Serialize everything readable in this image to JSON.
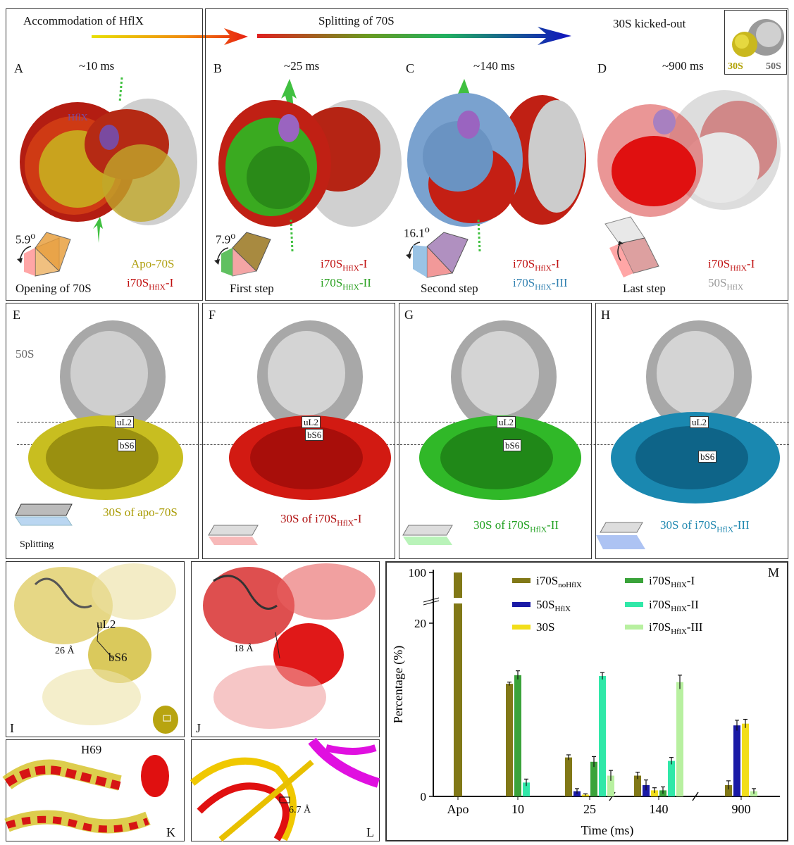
{
  "arrows": {
    "accommodation": "Accommodation of HflX",
    "splitting": "Splitting of 70S",
    "kicked_out": "30S kicked-out",
    "inset_30s": "30S",
    "inset_50s": "50S"
  },
  "panels_top": {
    "A": {
      "label": "A",
      "time": "~10 ms",
      "angle": "5.9",
      "deg": "o",
      "hflx": "HflX",
      "caption": "Opening of 70S",
      "legend1": "Apo-70S",
      "legend2_main": "i70S",
      "legend2_sub": "HflX",
      "legend2_suffix": "-I"
    },
    "B": {
      "label": "B",
      "time": "~25 ms",
      "angle": "7.9",
      "deg": "o",
      "caption": "First step",
      "legend1_main": "i70S",
      "legend1_sub": "HflX",
      "legend1_suffix": "-I",
      "legend2_main": "i70S",
      "legend2_sub": "HflX",
      "legend2_suffix": "-II"
    },
    "C": {
      "label": "C",
      "time": "~140 ms",
      "angle": "16.1",
      "deg": "o",
      "caption": "Second step",
      "legend1_main": "i70S",
      "legend1_sub": "HflX",
      "legend1_suffix": "-I",
      "legend2_main": "i70S",
      "legend2_sub": "HflX",
      "legend2_suffix": "-III"
    },
    "D": {
      "label": "D",
      "time": "~900 ms",
      "caption": "Last step",
      "legend1_main": "i70S",
      "legend1_sub": "HflX",
      "legend1_suffix": "-I",
      "legend2_main": "50S",
      "legend2_sub": "HflX"
    }
  },
  "panels_mid": {
    "E": {
      "label": "E",
      "tag50": "50S",
      "uL2": "uL2",
      "bS6": "bS6",
      "caption": "30S of apo-70S",
      "splitting": "Splitting"
    },
    "F": {
      "label": "F",
      "uL2": "uL2",
      "bS6": "bS6",
      "caption_main": "30S of i70S",
      "caption_sub": "HflX",
      "caption_suffix": "-I"
    },
    "G": {
      "label": "G",
      "uL2": "uL2",
      "bS6": "bS6",
      "caption_main": "30S of i70S",
      "caption_sub": "HflX",
      "caption_suffix": "-II"
    },
    "H": {
      "label": "H",
      "uL2": "uL2",
      "bS6": "bS6",
      "caption_main": "30S of i70S",
      "caption_sub": "HflX",
      "caption_suffix": "-III"
    }
  },
  "panels_low": {
    "I": {
      "label": "I",
      "uL2": "uL2",
      "bS6": "bS6",
      "dist": "26 Å"
    },
    "J": {
      "label": "J",
      "dist": "18 Å"
    },
    "K": {
      "label": "K",
      "h69": "H69"
    },
    "L": {
      "label": "L",
      "dist": "6.7 Å"
    }
  },
  "chart_data": {
    "type": "bar",
    "panel_label": "M",
    "xlabel": "Time (ms)",
    "ylabel": "Percentage (%)",
    "categories": [
      "Apo",
      "10",
      "25",
      "140",
      "900"
    ],
    "y_ticks": [
      "0",
      "20",
      "100"
    ],
    "axis_break": "y between 20 and 100",
    "series": [
      {
        "name_main": "i70S",
        "name_sub": "noHflX",
        "color": "#817817",
        "values": [
          100,
          13.0,
          4.5,
          2.4,
          1.3
        ],
        "errors": [
          0,
          0.2,
          0.3,
          0.4,
          0.5
        ]
      },
      {
        "name_main": "50S",
        "name_sub": "HflX",
        "color": "#1a1aa6",
        "values": [
          null,
          null,
          0.6,
          1.3,
          8.2
        ],
        "errors": [
          0,
          0,
          0.3,
          0.6,
          0.6
        ]
      },
      {
        "name_main": "30S",
        "name_sub": "",
        "color": "#f2de1a",
        "values": [
          null,
          null,
          0.2,
          0.7,
          8.4
        ],
        "errors": [
          0,
          0,
          0.1,
          0.3,
          0.5
        ]
      },
      {
        "name_main": "i70S",
        "name_sub": "HflX",
        "name_suffix": "-I",
        "color": "#3aa33a",
        "values": [
          null,
          14.0,
          4.0,
          0.7,
          null
        ],
        "errors": [
          0,
          0.5,
          0.6,
          0.4,
          0
        ]
      },
      {
        "name_main": "i70S",
        "name_sub": "HflX",
        "name_suffix": "-II",
        "color": "#30e8a8",
        "values": [
          null,
          1.6,
          13.9,
          4.1,
          null
        ],
        "errors": [
          0,
          0.4,
          0.4,
          0.4,
          0
        ]
      },
      {
        "name_main": "i70S",
        "name_sub": "HflX",
        "name_suffix": "-III",
        "color": "#b8f0a0",
        "values": [
          null,
          null,
          2.4,
          13.2,
          0.6
        ],
        "errors": [
          0,
          0,
          0.6,
          0.8,
          0.3
        ]
      }
    ]
  }
}
